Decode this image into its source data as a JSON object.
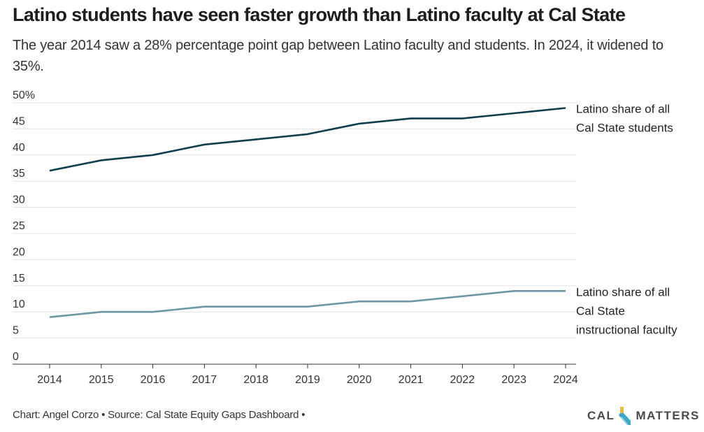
{
  "header": {
    "title": "Latino students have seen faster growth than Latino faculty at Cal State",
    "subtitle": "The year 2014 saw a 28% percentage point gap between Latino faculty and students. In 2024, it widened to 35%."
  },
  "footer": {
    "credit": "Chart: Angel Corzo • Source: Cal State Equity Gaps Dashboard •",
    "logo_left": "CAL",
    "logo_right": "MATTERS"
  },
  "chart_data": {
    "type": "line",
    "title": "Latino students have seen faster growth than Latino faculty at Cal State",
    "xlabel": "",
    "ylabel": "",
    "x": [
      2014,
      2015,
      2016,
      2017,
      2018,
      2019,
      2020,
      2021,
      2022,
      2023,
      2024
    ],
    "ylim": [
      0,
      50
    ],
    "yticks": [
      0,
      5,
      10,
      15,
      20,
      25,
      30,
      35,
      40,
      45,
      50
    ],
    "ytick_labels": [
      "0",
      "5",
      "10",
      "15",
      "20",
      "25",
      "30",
      "35",
      "40",
      "45",
      "50%"
    ],
    "grid": true,
    "legend": "direct labels at right end of lines",
    "series": [
      {
        "name": "Latino share of all Cal State students",
        "label_lines": [
          "Latino share of all",
          "Cal State students"
        ],
        "color": "#0f3f4c",
        "values": [
          37,
          39,
          40,
          42,
          43,
          44,
          46,
          47,
          47,
          48,
          49
        ]
      },
      {
        "name": "Latino share of all Cal State instructional faculty",
        "label_lines": [
          "Latino share of all",
          "Cal State",
          "instructional faculty"
        ],
        "color": "#6e97a6",
        "values": [
          9,
          10,
          10,
          11,
          11,
          11,
          12,
          12,
          13,
          14,
          14
        ]
      }
    ]
  }
}
